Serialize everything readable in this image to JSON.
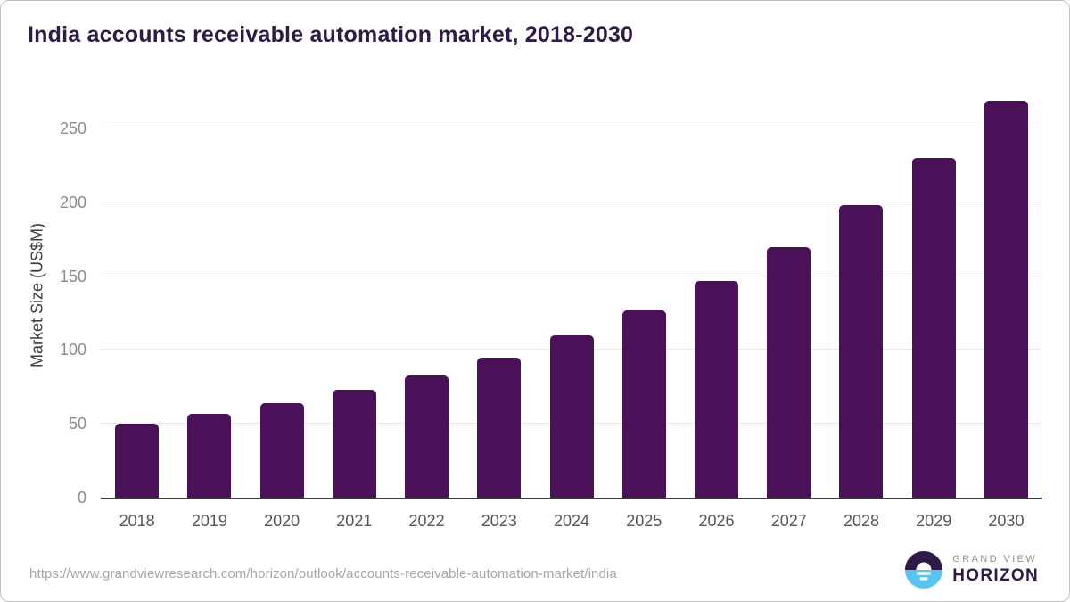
{
  "page": {
    "source_url": "https://www.grandviewresearch.com/horizon/outlook/accounts-receivable-automation-market/india"
  },
  "chart_data": {
    "type": "bar",
    "title": "India accounts receivable automation market, 2018-2030",
    "categories": [
      "2018",
      "2019",
      "2020",
      "2021",
      "2022",
      "2023",
      "2024",
      "2025",
      "2026",
      "2027",
      "2028",
      "2029",
      "2030"
    ],
    "values": [
      50,
      57,
      64,
      73,
      83,
      95,
      110,
      127,
      147,
      170,
      198,
      230,
      269
    ],
    "xlabel": "",
    "ylabel": "Market Size (US$M)",
    "ylim": [
      0,
      276
    ],
    "yticks": [
      0,
      50,
      100,
      150,
      200,
      250
    ],
    "grid": "horizontal",
    "legend": "none"
  },
  "branding": {
    "logo_line1": "GRAND VIEW",
    "logo_line2": "HORIZON"
  },
  "colors": {
    "bar": "#4A1159",
    "title": "#2E1A47",
    "gridline": "#E8E8E8",
    "axis_line": "#3B3B3B",
    "y_tick_label": "#8C8C8C",
    "x_tick_label": "#565656",
    "source_text": "#A6A6A6",
    "logo_dark": "#2E1A47",
    "logo_blue": "#58C4EF",
    "logo_gray": "#8B8B8B"
  }
}
